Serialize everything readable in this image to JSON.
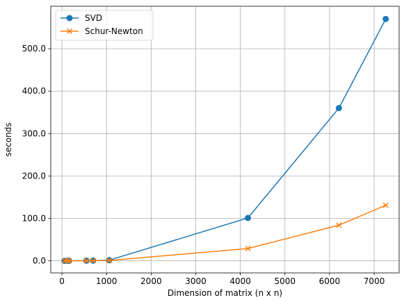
{
  "chart_data": {
    "type": "line",
    "xlabel": "Dimension of matrix (n x n)",
    "ylabel": "seconds",
    "xlim": [
      -250,
      7560
    ],
    "ylim": [
      -28.5,
      600
    ],
    "xticks": [
      "0",
      "1000",
      "2000",
      "3000",
      "4000",
      "5000",
      "6000",
      "7000"
    ],
    "xtick_values": [
      0,
      1000,
      2000,
      3000,
      4000,
      5000,
      6000,
      7000
    ],
    "yticks": [
      "0.0",
      "100.0",
      "200.0",
      "300.0",
      "400.0",
      "500.0"
    ],
    "ytick_values": [
      0,
      100,
      200,
      300,
      400,
      500
    ],
    "grid": true,
    "legend_position": "top-left",
    "series": [
      {
        "name": "SVD",
        "color": "#1f77b4",
        "marker": "circle",
        "x": [
          60,
          120,
          160,
          550,
          700,
          1060,
          4170,
          6210,
          7260
        ],
        "y": [
          0.0,
          0.1,
          0.2,
          0.4,
          0.6,
          1.5,
          101.0,
          360.0,
          570.0
        ]
      },
      {
        "name": "Schur-Newton",
        "color": "#ff7f0e",
        "marker": "x",
        "x": [
          60,
          120,
          160,
          550,
          700,
          1060,
          4170,
          6210,
          7260
        ],
        "y": [
          0.0,
          0.1,
          0.1,
          0.2,
          0.3,
          0.7,
          29.0,
          84.0,
          131.0
        ]
      }
    ]
  }
}
